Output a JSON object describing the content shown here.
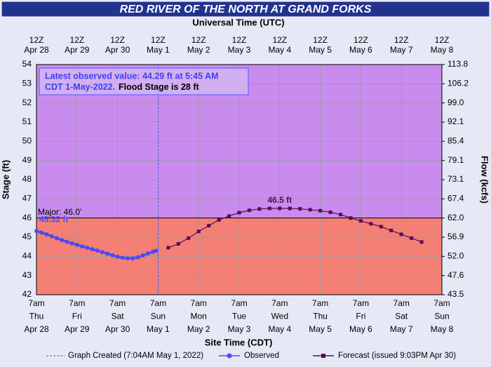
{
  "chart_data": {
    "type": "hydrograph",
    "title": "RED RIVER OF THE NORTH AT GRAND FORKS",
    "top_axis_label": "Universal Time (UTC)",
    "xlabel": "Site Time (CDT)",
    "ylabel": "Stage (ft)",
    "y2label": "Flow (kcfs)",
    "xlim": [
      "04-28 07:00",
      "05-08 07:00"
    ],
    "xticks": [
      {
        "value": "04-28 07:00",
        "label": [
          "7am",
          "Thu",
          "Apr 28"
        ],
        "utc_label": [
          "12Z",
          "Apr 28"
        ]
      },
      {
        "value": "04-29 07:00",
        "label": [
          "7am",
          "Fri",
          "Apr 29"
        ],
        "utc_label": [
          "12Z",
          "Apr 29"
        ]
      },
      {
        "value": "04-30 07:00",
        "label": [
          "7am",
          "Sat",
          "Apr 30"
        ],
        "utc_label": [
          "12Z",
          "Apr 30"
        ]
      },
      {
        "value": "05-01 07:00",
        "label": [
          "7am",
          "Sun",
          "May 1"
        ],
        "utc_label": [
          "12Z",
          "May 1"
        ]
      },
      {
        "value": "05-02 07:00",
        "label": [
          "7am",
          "Mon",
          "May 2"
        ],
        "utc_label": [
          "12Z",
          "May 2"
        ]
      },
      {
        "value": "05-03 07:00",
        "label": [
          "7am",
          "Tue",
          "May 3"
        ],
        "utc_label": [
          "12Z",
          "May 3"
        ]
      },
      {
        "value": "05-04 07:00",
        "label": [
          "7am",
          "Wed",
          "May 4"
        ],
        "utc_label": [
          "12Z",
          "May 4"
        ]
      },
      {
        "value": "05-05 07:00",
        "label": [
          "7am",
          "Thu",
          "May 5"
        ],
        "utc_label": [
          "12Z",
          "May 5"
        ]
      },
      {
        "value": "05-06 07:00",
        "label": [
          "7am",
          "Fri",
          "May 6"
        ],
        "utc_label": [
          "12Z",
          "May 6"
        ]
      },
      {
        "value": "05-07 07:00",
        "label": [
          "7am",
          "Sat",
          "May 7"
        ],
        "utc_label": [
          "12Z",
          "May 7"
        ]
      },
      {
        "value": "05-08 07:00",
        "label": [
          "7am",
          "Sun",
          "May 8"
        ],
        "utc_label": [
          "12Z",
          "May 8"
        ]
      }
    ],
    "ylim": [
      42,
      54
    ],
    "yticks": [
      42,
      43,
      44,
      45,
      46,
      47,
      48,
      49,
      50,
      51,
      52,
      53,
      54
    ],
    "y2ticks": [
      43.5,
      47.6,
      {
        "value": 52,
        "label": "52.0"
      },
      56.9,
      {
        "value": 62,
        "label": "62.0"
      },
      67.4,
      73.1,
      79.1,
      85.4,
      92.1,
      {
        "value": 99,
        "label": "99.0"
      },
      106.2,
      113.8
    ],
    "grid": true,
    "threshold": {
      "label": "Major: 46.0'",
      "value": 46,
      "below_color": "#f47f74",
      "above_color": "#c98cee"
    },
    "info": {
      "observed": [
        "Latest observed value: 44.29 ft at 5:45 AM",
        "CDT 1-May-2022."
      ],
      "flood_stage": "Flood Stage is 28 ft"
    },
    "created": {
      "label": "Graph Created (7:04AM May 1, 2022)",
      "x": "05-01 07:04",
      "color": "#5555ff"
    },
    "series": [
      {
        "name": "Observed",
        "color": "#4b4bf0",
        "x": [
          "04-28 07:00",
          "04-28 10:00",
          "04-28 13:00",
          "04-28 16:00",
          "04-28 19:00",
          "04-28 22:00",
          "04-29 01:00",
          "04-29 04:00",
          "04-29 07:00",
          "04-29 10:00",
          "04-29 13:00",
          "04-29 16:00",
          "04-29 19:00",
          "04-29 22:00",
          "04-30 01:00",
          "04-30 04:00",
          "04-30 07:00",
          "04-30 10:00",
          "04-30 13:00",
          "04-30 16:00",
          "04-30 19:00",
          "04-30 22:00",
          "05-01 01:00",
          "05-01 04:00",
          "05-01 05:45"
        ],
        "values": [
          45.32,
          45.24,
          45.15,
          45.05,
          44.95,
          44.85,
          44.76,
          44.68,
          44.6,
          44.52,
          44.45,
          44.37,
          44.3,
          44.22,
          44.14,
          44.06,
          43.98,
          43.93,
          43.9,
          43.9,
          43.95,
          44.05,
          44.15,
          44.24,
          44.29
        ]
      },
      {
        "name": "Forecast (issued 9:03PM Apr 30)",
        "color": "#5a0a5a",
        "x": [
          "05-01 13:00",
          "05-01 19:00",
          "05-02 01:00",
          "05-02 07:00",
          "05-02 13:00",
          "05-02 19:00",
          "05-03 01:00",
          "05-03 07:00",
          "05-03 13:00",
          "05-03 19:00",
          "05-04 01:00",
          "05-04 07:00",
          "05-04 13:00",
          "05-04 19:00",
          "05-05 01:00",
          "05-05 07:00",
          "05-05 13:00",
          "05-05 19:00",
          "05-06 01:00",
          "05-06 07:00",
          "05-06 13:00",
          "05-06 19:00",
          "05-07 01:00",
          "05-07 07:00",
          "05-07 13:00",
          "05-07 19:00"
        ],
        "values": [
          44.45,
          44.65,
          44.95,
          45.3,
          45.6,
          45.9,
          46.1,
          46.28,
          46.4,
          46.47,
          46.5,
          46.5,
          46.5,
          46.48,
          46.43,
          46.38,
          46.3,
          46.18,
          46.0,
          45.85,
          45.7,
          45.55,
          45.35,
          45.15,
          44.95,
          44.75
        ]
      }
    ],
    "annotations": [
      {
        "text": "45.32 ft",
        "x": "04-28 07:00",
        "y": 45.32,
        "color": "#4b4bf0"
      },
      {
        "text": "46.5 ft",
        "x": "05-04 07:00",
        "y": 46.5,
        "color": "#5a0a5a"
      }
    ]
  }
}
